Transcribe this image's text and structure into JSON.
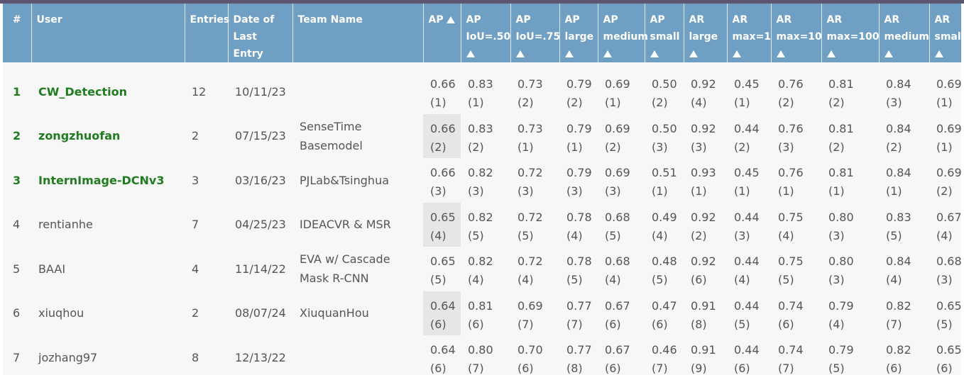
{
  "header": {
    "rank": "#",
    "user": "User",
    "entries": "Entries",
    "date": [
      "Date of",
      "Last Entry"
    ],
    "team": "Team Name",
    "metrics": [
      [
        "AP"
      ],
      [
        "AP",
        "IoU=.50"
      ],
      [
        "AP",
        "IoU=.75"
      ],
      [
        "AP",
        "large"
      ],
      [
        "AP",
        "medium"
      ],
      [
        "AP",
        "small"
      ],
      [
        "AR",
        "large"
      ],
      [
        "AR",
        "max=1"
      ],
      [
        "AR",
        "max=10"
      ],
      [
        "AR",
        "max=100"
      ],
      [
        "AR",
        "medium"
      ],
      [
        "AR",
        "small"
      ]
    ]
  },
  "rows": [
    {
      "rank": "1",
      "user": "CW_Detection",
      "entries": "12",
      "date": "10/11/23",
      "team": [
        "",
        ""
      ],
      "metrics": [
        [
          "0.66",
          "(1)"
        ],
        [
          "0.83",
          "(1)"
        ],
        [
          "0.73",
          "(2)"
        ],
        [
          "0.79",
          "(2)"
        ],
        [
          "0.69",
          "(1)"
        ],
        [
          "0.50",
          "(2)"
        ],
        [
          "0.92",
          "(4)"
        ],
        [
          "0.45",
          "(1)"
        ],
        [
          "0.76",
          "(2)"
        ],
        [
          "0.81",
          "(2)"
        ],
        [
          "0.84",
          "(3)"
        ],
        [
          "0.69",
          "(1)"
        ]
      ]
    },
    {
      "rank": "2",
      "user": "zongzhuofan",
      "entries": "2",
      "date": "07/15/23",
      "team": [
        "SenseTime",
        "Basemodel"
      ],
      "metrics": [
        [
          "0.66",
          "(2)"
        ],
        [
          "0.83",
          "(2)"
        ],
        [
          "0.73",
          "(1)"
        ],
        [
          "0.79",
          "(1)"
        ],
        [
          "0.69",
          "(2)"
        ],
        [
          "0.50",
          "(3)"
        ],
        [
          "0.92",
          "(3)"
        ],
        [
          "0.44",
          "(2)"
        ],
        [
          "0.76",
          "(3)"
        ],
        [
          "0.81",
          "(2)"
        ],
        [
          "0.84",
          "(2)"
        ],
        [
          "0.69",
          "(1)"
        ]
      ]
    },
    {
      "rank": "3",
      "user": "InternImage-DCNv3",
      "entries": "3",
      "date": "03/16/23",
      "team": [
        "PJLab&Tsinghua",
        ""
      ],
      "metrics": [
        [
          "0.66",
          "(3)"
        ],
        [
          "0.82",
          "(3)"
        ],
        [
          "0.72",
          "(3)"
        ],
        [
          "0.79",
          "(3)"
        ],
        [
          "0.69",
          "(3)"
        ],
        [
          "0.51",
          "(1)"
        ],
        [
          "0.93",
          "(1)"
        ],
        [
          "0.45",
          "(1)"
        ],
        [
          "0.76",
          "(1)"
        ],
        [
          "0.81",
          "(1)"
        ],
        [
          "0.84",
          "(1)"
        ],
        [
          "0.69",
          "(2)"
        ]
      ]
    },
    {
      "rank": "4",
      "user": "rentianhe",
      "entries": "7",
      "date": "04/25/23",
      "team": [
        "IDEACVR & MSR",
        ""
      ],
      "metrics": [
        [
          "0.65",
          "(4)"
        ],
        [
          "0.82",
          "(5)"
        ],
        [
          "0.72",
          "(5)"
        ],
        [
          "0.78",
          "(4)"
        ],
        [
          "0.68",
          "(5)"
        ],
        [
          "0.49",
          "(4)"
        ],
        [
          "0.92",
          "(2)"
        ],
        [
          "0.44",
          "(3)"
        ],
        [
          "0.75",
          "(4)"
        ],
        [
          "0.80",
          "(3)"
        ],
        [
          "0.83",
          "(5)"
        ],
        [
          "0.67",
          "(4)"
        ]
      ]
    },
    {
      "rank": "5",
      "user": "BAAI",
      "entries": "4",
      "date": "11/14/22",
      "team": [
        "EVA w/ Cascade",
        "Mask R-CNN"
      ],
      "metrics": [
        [
          "0.65",
          "(5)"
        ],
        [
          "0.82",
          "(4)"
        ],
        [
          "0.72",
          "(4)"
        ],
        [
          "0.78",
          "(5)"
        ],
        [
          "0.68",
          "(4)"
        ],
        [
          "0.48",
          "(5)"
        ],
        [
          "0.92",
          "(6)"
        ],
        [
          "0.44",
          "(4)"
        ],
        [
          "0.75",
          "(5)"
        ],
        [
          "0.80",
          "(3)"
        ],
        [
          "0.84",
          "(4)"
        ],
        [
          "0.68",
          "(3)"
        ]
      ]
    },
    {
      "rank": "6",
      "user": "xiuqhou",
      "entries": "2",
      "date": "08/07/24",
      "team": [
        "XiuquanHou",
        ""
      ],
      "metrics": [
        [
          "0.64",
          "(6)"
        ],
        [
          "0.81",
          "(6)"
        ],
        [
          "0.69",
          "(7)"
        ],
        [
          "0.77",
          "(7)"
        ],
        [
          "0.67",
          "(6)"
        ],
        [
          "0.47",
          "(6)"
        ],
        [
          "0.91",
          "(8)"
        ],
        [
          "0.44",
          "(5)"
        ],
        [
          "0.74",
          "(6)"
        ],
        [
          "0.79",
          "(4)"
        ],
        [
          "0.82",
          "(7)"
        ],
        [
          "0.65",
          "(5)"
        ]
      ]
    },
    {
      "rank": "7",
      "user": "jozhang97",
      "entries": "8",
      "date": "12/13/22",
      "team": [
        "",
        ""
      ],
      "metrics": [
        [
          "0.64",
          "(6)"
        ],
        [
          "0.80",
          "(7)"
        ],
        [
          "0.70",
          "(6)"
        ],
        [
          "0.77",
          "(8)"
        ],
        [
          "0.67",
          "(6)"
        ],
        [
          "0.46",
          "(7)"
        ],
        [
          "0.91",
          "(9)"
        ],
        [
          "0.44",
          "(6)"
        ],
        [
          "0.74",
          "(7)"
        ],
        [
          "0.79",
          "(5)"
        ],
        [
          "0.82",
          "(6)"
        ],
        [
          "0.65",
          "(6)"
        ]
      ]
    }
  ]
}
